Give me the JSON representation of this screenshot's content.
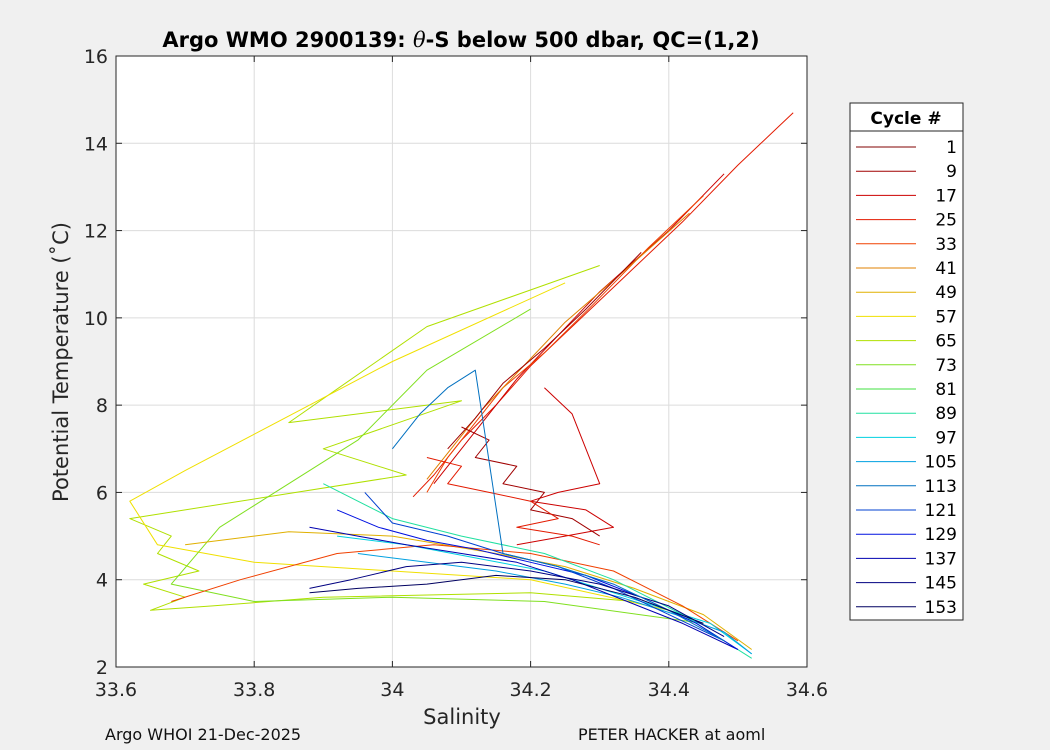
{
  "chart_data": {
    "type": "line",
    "title_prefix": "Argo WMO 2900139: ",
    "title_symbol": "θ",
    "title_suffix": "-S below 500 dbar,  QC=(1,2)",
    "xlabel": "Salinity",
    "ylabel": "Potential Temperature (˚C)",
    "xlim": [
      33.6,
      34.6
    ],
    "ylim": [
      2,
      16
    ],
    "x_ticks": [
      33.6,
      33.8,
      34,
      34.2,
      34.4,
      34.6
    ],
    "x_tick_labels": [
      "33.6",
      "33.8",
      "34",
      "34.2",
      "34.4",
      "34.6"
    ],
    "y_ticks": [
      2,
      4,
      6,
      8,
      10,
      12,
      14,
      16
    ],
    "y_tick_labels": [
      "2",
      "4",
      "6",
      "8",
      "10",
      "12",
      "14",
      "16"
    ],
    "grid": true,
    "legend": {
      "title": "Cycle #",
      "placement": "right",
      "entries": [
        {
          "label": "1",
          "color": "#800000"
        },
        {
          "label": "9",
          "color": "#a00000"
        },
        {
          "label": "17",
          "color": "#cc0000"
        },
        {
          "label": "25",
          "color": "#e31a00"
        },
        {
          "label": "33",
          "color": "#f04000"
        },
        {
          "label": "41",
          "color": "#e08000"
        },
        {
          "label": "49",
          "color": "#e0b000"
        },
        {
          "label": "57",
          "color": "#f0e000"
        },
        {
          "label": "65",
          "color": "#b0e000"
        },
        {
          "label": "73",
          "color": "#80e020"
        },
        {
          "label": "81",
          "color": "#40e040"
        },
        {
          "label": "89",
          "color": "#20e0a0"
        },
        {
          "label": "97",
          "color": "#00d0e0"
        },
        {
          "label": "105",
          "color": "#00a0e0"
        },
        {
          "label": "113",
          "color": "#0070c0"
        },
        {
          "label": "121",
          "color": "#0040d0"
        },
        {
          "label": "129",
          "color": "#0010e0"
        },
        {
          "label": "137",
          "color": "#0000b0"
        },
        {
          "label": "145",
          "color": "#000080"
        },
        {
          "label": "153",
          "color": "#000060"
        }
      ]
    },
    "series": [
      {
        "name": "warm-branch-a",
        "color": "#e31a00",
        "x": [
          34.58,
          34.5,
          34.42,
          34.34,
          34.26,
          34.2,
          34.15,
          34.1,
          34.06,
          34.03
        ],
        "y": [
          14.7,
          13.5,
          12.2,
          11.0,
          9.8,
          8.9,
          8.0,
          7.2,
          6.4,
          5.9
        ]
      },
      {
        "name": "warm-branch-b",
        "color": "#cc0000",
        "x": [
          34.48,
          34.4,
          34.3,
          34.24,
          34.18,
          34.14,
          34.1,
          34.06
        ],
        "y": [
          13.3,
          12.0,
          10.6,
          9.6,
          8.6,
          7.8,
          7.0,
          6.2
        ]
      },
      {
        "name": "warm-branch-c",
        "color": "#f04000",
        "x": [
          34.45,
          34.37,
          34.29,
          34.22,
          34.16,
          34.12,
          34.08,
          34.05
        ],
        "y": [
          12.8,
          11.6,
          10.3,
          9.2,
          8.4,
          7.6,
          6.8,
          6.0
        ]
      },
      {
        "name": "warm-branch-d",
        "color": "#e08000",
        "x": [
          34.43,
          34.33,
          34.25,
          34.19,
          34.13,
          34.09,
          34.05
        ],
        "y": [
          12.4,
          11.0,
          9.9,
          8.9,
          7.9,
          7.1,
          6.3
        ]
      },
      {
        "name": "warm-branch-e",
        "color": "#a00000",
        "x": [
          34.36,
          34.28,
          34.22,
          34.16,
          34.12,
          34.08
        ],
        "y": [
          11.5,
          10.2,
          9.3,
          8.5,
          7.7,
          7.0
        ]
      },
      {
        "name": "intrusion-loop-1",
        "color": "#cc0000",
        "x": [
          34.22,
          34.26,
          34.28,
          34.3,
          34.24,
          34.2,
          34.28,
          34.32,
          34.25,
          34.18
        ],
        "y": [
          8.4,
          7.8,
          7.0,
          6.2,
          6.0,
          5.8,
          5.6,
          5.2,
          5.0,
          4.8
        ]
      },
      {
        "name": "intrusion-loop-2",
        "color": "#a00000",
        "x": [
          34.1,
          34.14,
          34.12,
          34.18,
          34.16,
          34.22,
          34.2,
          34.26,
          34.3
        ],
        "y": [
          7.5,
          7.2,
          6.8,
          6.6,
          6.2,
          6.0,
          5.6,
          5.4,
          5.0
        ]
      },
      {
        "name": "intrusion-loop-3",
        "color": "#e31a00",
        "x": [
          34.05,
          34.1,
          34.08,
          34.14,
          34.2,
          34.24,
          34.18,
          34.26,
          34.3
        ],
        "y": [
          6.8,
          6.6,
          6.2,
          6.0,
          5.8,
          5.4,
          5.2,
          5.0,
          4.8
        ]
      },
      {
        "name": "fresh-lens-1",
        "color": "#b0e000",
        "x": [
          34.3,
          34.05,
          33.85,
          34.1,
          33.9,
          34.02,
          33.62,
          33.68,
          33.66,
          33.72,
          33.64,
          33.7,
          33.65,
          33.74,
          33.9,
          34.2,
          34.35
        ],
        "y": [
          11.2,
          9.8,
          7.6,
          8.1,
          7.0,
          6.4,
          5.4,
          5.0,
          4.6,
          4.2,
          3.9,
          3.6,
          3.3,
          3.4,
          3.6,
          3.7,
          3.5
        ]
      },
      {
        "name": "fresh-lens-2",
        "color": "#f0e000",
        "x": [
          34.25,
          34.0,
          33.7,
          33.62,
          33.66,
          33.8,
          34.0,
          34.2,
          34.4
        ],
        "y": [
          10.8,
          9.0,
          6.5,
          5.8,
          4.8,
          4.4,
          4.2,
          4.0,
          3.3
        ]
      },
      {
        "name": "fresh-lens-3",
        "color": "#80e020",
        "x": [
          34.2,
          34.05,
          33.95,
          33.75,
          33.68,
          33.8,
          34.0,
          34.22,
          34.45
        ],
        "y": [
          10.2,
          8.8,
          7.2,
          5.2,
          3.9,
          3.5,
          3.6,
          3.5,
          3.0
        ]
      },
      {
        "name": "mixed-1",
        "color": "#e0b000",
        "x": [
          33.7,
          33.85,
          34.0,
          34.15,
          34.25,
          34.35,
          34.45,
          34.52
        ],
        "y": [
          4.8,
          5.1,
          5.0,
          4.6,
          4.3,
          3.8,
          3.2,
          2.4
        ]
      },
      {
        "name": "mixed-2",
        "color": "#f04000",
        "x": [
          33.68,
          33.78,
          33.92,
          34.06,
          34.2,
          34.32,
          34.42,
          34.5
        ],
        "y": [
          3.5,
          4.0,
          4.6,
          4.8,
          4.6,
          4.2,
          3.4,
          2.6
        ]
      },
      {
        "name": "cool-1",
        "color": "#00d0e0",
        "x": [
          33.92,
          34.02,
          34.12,
          34.22,
          34.3,
          34.38,
          34.46,
          34.52
        ],
        "y": [
          5.0,
          4.8,
          4.5,
          4.2,
          3.8,
          3.4,
          3.0,
          2.3
        ]
      },
      {
        "name": "cool-2",
        "color": "#00a0e0",
        "x": [
          33.95,
          34.05,
          34.15,
          34.25,
          34.33,
          34.41,
          34.48,
          34.52
        ],
        "y": [
          4.6,
          4.4,
          4.2,
          3.9,
          3.6,
          3.2,
          2.8,
          2.3
        ]
      },
      {
        "name": "cool-3",
        "color": "#20e0a0",
        "x": [
          33.9,
          34.0,
          34.1,
          34.22,
          34.32,
          34.42,
          34.52
        ],
        "y": [
          6.2,
          5.4,
          5.0,
          4.6,
          4.0,
          3.2,
          2.2
        ]
      },
      {
        "name": "deep-1",
        "color": "#0000b0",
        "x": [
          33.88,
          33.95,
          34.02,
          34.1,
          34.18,
          34.26,
          34.34,
          34.42,
          34.5
        ],
        "y": [
          5.2,
          5.0,
          4.8,
          4.6,
          4.4,
          4.0,
          3.5,
          3.0,
          2.4
        ]
      },
      {
        "name": "deep-2",
        "color": "#0010e0",
        "x": [
          33.92,
          33.98,
          34.05,
          34.12,
          34.2,
          34.28,
          34.36,
          34.44,
          34.5
        ],
        "y": [
          5.6,
          5.2,
          4.9,
          4.7,
          4.4,
          4.1,
          3.6,
          3.0,
          2.4
        ]
      },
      {
        "name": "deep-3",
        "color": "#0040d0",
        "x": [
          33.96,
          34.0,
          34.08,
          34.16,
          34.24,
          34.32,
          34.4,
          34.48
        ],
        "y": [
          6.0,
          5.3,
          5.0,
          4.6,
          4.3,
          3.8,
          3.2,
          2.6
        ]
      },
      {
        "name": "deep-4",
        "color": "#000080",
        "x": [
          33.88,
          33.94,
          34.02,
          34.1,
          34.2,
          34.3,
          34.4,
          34.48
        ],
        "y": [
          3.8,
          4.0,
          4.3,
          4.4,
          4.2,
          3.9,
          3.4,
          2.7
        ]
      },
      {
        "name": "deep-5",
        "color": "#0070c0",
        "x": [
          34.0,
          34.04,
          34.08,
          34.12,
          34.16,
          34.24,
          34.32,
          34.4,
          34.48
        ],
        "y": [
          7.0,
          7.8,
          8.4,
          8.8,
          4.6,
          4.3,
          3.9,
          3.3,
          2.6
        ]
      },
      {
        "name": "deep-6",
        "color": "#000060",
        "x": [
          33.88,
          33.95,
          34.05,
          34.15,
          34.25,
          34.35,
          34.45
        ],
        "y": [
          3.7,
          3.8,
          3.9,
          4.1,
          4.0,
          3.6,
          3.0
        ]
      }
    ]
  },
  "footer": {
    "left": "Argo WHOI 21-Dec-2025",
    "right": "PETER HACKER at aoml"
  }
}
